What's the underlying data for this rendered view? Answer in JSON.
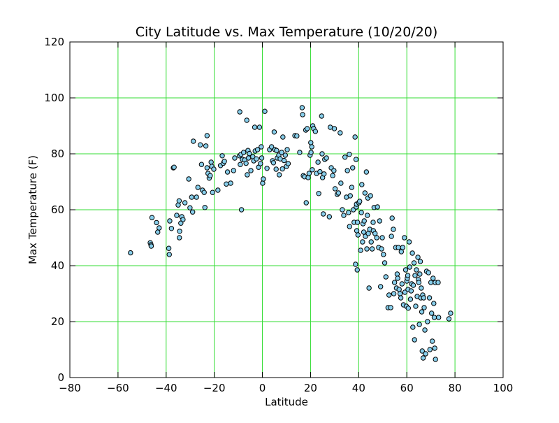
{
  "chart_data": {
    "type": "scatter",
    "title": "City Latitude vs. Max Temperature (10/20/20)",
    "xlabel": "Latitude",
    "ylabel": "Max Temperature (F)",
    "xlim": [
      -80,
      100
    ],
    "ylim": [
      0,
      120
    ],
    "xticks": [
      -80,
      -60,
      -40,
      -20,
      0,
      20,
      40,
      60,
      80,
      100
    ],
    "yticks": [
      0,
      20,
      40,
      60,
      80,
      100,
      120
    ],
    "grid": true,
    "legend": "none",
    "colors": {
      "marker_fill": "#87ceeb",
      "marker_edge": "#000000",
      "grid": "#33dd33",
      "axes": "#000000"
    },
    "series": [
      {
        "points": [
          [
            -54.8,
            44.6
          ],
          [
            -46.6,
            48.2
          ],
          [
            -46.3,
            47.5
          ],
          [
            -46.2,
            47
          ],
          [
            -45.9,
            57.2
          ],
          [
            -44,
            55.4
          ],
          [
            -43.5,
            52
          ],
          [
            -42.9,
            53.5
          ],
          [
            -38.9,
            46.2
          ],
          [
            -38.7,
            44
          ],
          [
            -38.5,
            56
          ],
          [
            -37.8,
            53.3
          ],
          [
            -37,
            75
          ],
          [
            -36.7,
            75.2
          ],
          [
            -35.6,
            58
          ],
          [
            -35,
            61.7
          ],
          [
            -34.6,
            63.2
          ],
          [
            -34.5,
            50
          ],
          [
            -34.4,
            52.3
          ],
          [
            -33.9,
            55.2
          ],
          [
            -33.5,
            57.5
          ],
          [
            -33,
            56.5
          ],
          [
            -32.2,
            62.5
          ],
          [
            -30.6,
            71
          ],
          [
            -30.1,
            60.7
          ],
          [
            -29.4,
            64.5
          ],
          [
            -29,
            59.2
          ],
          [
            -28.7,
            84.5
          ],
          [
            -27.4,
            64.5
          ],
          [
            -26.8,
            68
          ],
          [
            -25.8,
            83.2
          ],
          [
            -25.3,
            76.2
          ],
          [
            -24.9,
            67
          ],
          [
            -24.2,
            66.2
          ],
          [
            -23.9,
            60.8
          ],
          [
            -23.5,
            82.8
          ],
          [
            -23,
            86.5
          ],
          [
            -23,
            75
          ],
          [
            -22.6,
            73
          ],
          [
            -22.1,
            71.3
          ],
          [
            -21.7,
            72.2
          ],
          [
            -21.3,
            77
          ],
          [
            -21,
            75.5
          ],
          [
            -20.7,
            66.2
          ],
          [
            -20.2,
            74.5
          ],
          [
            -18.5,
            67
          ],
          [
            -17.4,
            75.8
          ],
          [
            -16.7,
            79.3
          ],
          [
            -16.3,
            76.6
          ],
          [
            -15.8,
            77.3
          ],
          [
            -15,
            69.2
          ],
          [
            -14.5,
            73.5
          ],
          [
            -13.2,
            69.5
          ],
          [
            -12,
            74
          ],
          [
            -11.5,
            78.5
          ],
          [
            -9.5,
            79.3
          ],
          [
            -9.4,
            95
          ],
          [
            -9.2,
            76.2
          ],
          [
            -8.9,
            79.8
          ],
          [
            -8.7,
            60
          ],
          [
            -8.3,
            78
          ],
          [
            -7.8,
            80.5
          ],
          [
            -7.4,
            77.8
          ],
          [
            -6.8,
            76.6
          ],
          [
            -6.5,
            92
          ],
          [
            -6.3,
            72.5
          ],
          [
            -6,
            81.2
          ],
          [
            -5.8,
            78.5
          ],
          [
            -5.4,
            80.1
          ],
          [
            -4.8,
            74
          ],
          [
            -4,
            79
          ],
          [
            -3.6,
            77.5
          ],
          [
            -3.2,
            89.5
          ],
          [
            -3,
            81
          ],
          [
            -2.5,
            78.2
          ],
          [
            -2,
            81.5
          ],
          [
            -1.6,
            75.2
          ],
          [
            -1.2,
            89.5
          ],
          [
            -0.8,
            76.5
          ],
          [
            -0.5,
            82.5
          ],
          [
            -0.3,
            78.5
          ],
          [
            0.1,
            69.5
          ],
          [
            0.4,
            71
          ],
          [
            1,
            95.2
          ],
          [
            1.9,
            74.8
          ],
          [
            3,
            81.5
          ],
          [
            3.8,
            82.5
          ],
          [
            4.2,
            77.5
          ],
          [
            4.6,
            76.8
          ],
          [
            4.9,
            87.8
          ],
          [
            5.2,
            81.5
          ],
          [
            5.7,
            74.5
          ],
          [
            5.9,
            81.2
          ],
          [
            6.2,
            78.5
          ],
          [
            6.8,
            79.5
          ],
          [
            7,
            72.5
          ],
          [
            7.4,
            78.2
          ],
          [
            8,
            80.5
          ],
          [
            8.3,
            74.6
          ],
          [
            8.5,
            86
          ],
          [
            9,
            77.6
          ],
          [
            9.5,
            79.5
          ],
          [
            10,
            75.5
          ],
          [
            10.3,
            81.5
          ],
          [
            10.7,
            76.5
          ],
          [
            13.5,
            86.5
          ],
          [
            14.3,
            86.4
          ],
          [
            15.5,
            80.5
          ],
          [
            16.5,
            96.5
          ],
          [
            16.7,
            94
          ],
          [
            17,
            72.2
          ],
          [
            17.5,
            71.8
          ],
          [
            18,
            88.5
          ],
          [
            18.2,
            62.5
          ],
          [
            18.6,
            89
          ],
          [
            19,
            71.5
          ],
          [
            19.4,
            73
          ],
          [
            19.8,
            79.5
          ],
          [
            20.1,
            84
          ],
          [
            20.2,
            80.5
          ],
          [
            20.5,
            82.5
          ],
          [
            20.7,
            74.3
          ],
          [
            20.9,
            90
          ],
          [
            21.3,
            89
          ],
          [
            22,
            88
          ],
          [
            22.5,
            73
          ],
          [
            23.1,
            77
          ],
          [
            23.4,
            65.8
          ],
          [
            23.9,
            73.6
          ],
          [
            24.6,
            93.5
          ],
          [
            24.8,
            80
          ],
          [
            25,
            71.5
          ],
          [
            25.3,
            58.5
          ],
          [
            25.6,
            72.8
          ],
          [
            25.9,
            78
          ],
          [
            26.6,
            78.5
          ],
          [
            27.8,
            57.5
          ],
          [
            28.2,
            89.5
          ],
          [
            28.6,
            75
          ],
          [
            29.2,
            72.2
          ],
          [
            29.7,
            74
          ],
          [
            29.9,
            89
          ],
          [
            30.2,
            67.5
          ],
          [
            31.1,
            65.5
          ],
          [
            31.6,
            66
          ],
          [
            32.3,
            87.5
          ],
          [
            32.6,
            69.5
          ],
          [
            33.2,
            60
          ],
          [
            33.8,
            58
          ],
          [
            34.3,
            78.8
          ],
          [
            34.9,
            64.5
          ],
          [
            35.3,
            74
          ],
          [
            35.8,
            59
          ],
          [
            36.1,
            79.8
          ],
          [
            36.2,
            54
          ],
          [
            36.5,
            65
          ],
          [
            37.1,
            68
          ],
          [
            37.5,
            75
          ],
          [
            37.8,
            60
          ],
          [
            38.1,
            55.5
          ],
          [
            38.5,
            86
          ],
          [
            38.7,
            40.5
          ],
          [
            38.9,
            78
          ],
          [
            39,
            61
          ],
          [
            39.1,
            62
          ],
          [
            39.2,
            52.5
          ],
          [
            39.4,
            38.5
          ],
          [
            39.5,
            55.5
          ],
          [
            39.7,
            51
          ],
          [
            40.1,
            62.5
          ],
          [
            40.4,
            63
          ],
          [
            40.8,
            45.5
          ],
          [
            41.1,
            59
          ],
          [
            41.3,
            69
          ],
          [
            41.6,
            48.5
          ],
          [
            41.8,
            55
          ],
          [
            42.1,
            52
          ],
          [
            42.3,
            56
          ],
          [
            42.6,
            66
          ],
          [
            42.8,
            50.5
          ],
          [
            43.2,
            73.5
          ],
          [
            43.4,
            46
          ],
          [
            43.6,
            58
          ],
          [
            43.8,
            64.2
          ],
          [
            44,
            51.5
          ],
          [
            44.3,
            32
          ],
          [
            44.6,
            53
          ],
          [
            44.9,
            65
          ],
          [
            45.2,
            48.5
          ],
          [
            45.6,
            46
          ],
          [
            46,
            55.5
          ],
          [
            46.1,
            52.5
          ],
          [
            46.4,
            60.8
          ],
          [
            46.8,
            51.5
          ],
          [
            47.5,
            50
          ],
          [
            47.8,
            61
          ],
          [
            48.3,
            46.5
          ],
          [
            48.7,
            56
          ],
          [
            49.1,
            32.5
          ],
          [
            49.5,
            46
          ],
          [
            49.8,
            50
          ],
          [
            50.3,
            44
          ],
          [
            50.8,
            41
          ],
          [
            51.3,
            36
          ],
          [
            52.2,
            25
          ],
          [
            52.6,
            29.5
          ],
          [
            53.3,
            25
          ],
          [
            53.6,
            50.5
          ],
          [
            53.9,
            57
          ],
          [
            54.4,
            53
          ],
          [
            54.6,
            30
          ],
          [
            54.9,
            34
          ],
          [
            55.4,
            46.5
          ],
          [
            55.7,
            32
          ],
          [
            56,
            37
          ],
          [
            56.2,
            35.5
          ],
          [
            56.5,
            46.5
          ],
          [
            56.8,
            31.5
          ],
          [
            57.2,
            30
          ],
          [
            57.5,
            28.5
          ],
          [
            57.7,
            45
          ],
          [
            58,
            33.5
          ],
          [
            58.3,
            46.5
          ],
          [
            58.6,
            26
          ],
          [
            59,
            50
          ],
          [
            59.2,
            30.5
          ],
          [
            59.5,
            38.5
          ],
          [
            59.8,
            25.5
          ],
          [
            60,
            34.5
          ],
          [
            60.2,
            35.5
          ],
          [
            60.4,
            36.5
          ],
          [
            60.5,
            31.5
          ],
          [
            60.6,
            24.8
          ],
          [
            61,
            48.5
          ],
          [
            61.2,
            39.5
          ],
          [
            61.5,
            28
          ],
          [
            61.8,
            31
          ],
          [
            62,
            33.5
          ],
          [
            62.3,
            44.5
          ],
          [
            62.5,
            18
          ],
          [
            62.7,
            33
          ],
          [
            63,
            41
          ],
          [
            63.2,
            13.5
          ],
          [
            63.4,
            36.5
          ],
          [
            63.7,
            25.5
          ],
          [
            64,
            38.5
          ],
          [
            64.3,
            29
          ],
          [
            64.6,
            43
          ],
          [
            64.8,
            35
          ],
          [
            65,
            34
          ],
          [
            65.2,
            19
          ],
          [
            65.4,
            37
          ],
          [
            65.6,
            41.5
          ],
          [
            65.8,
            28.5
          ],
          [
            66,
            32
          ],
          [
            66.2,
            23.5
          ],
          [
            66.4,
            9.5
          ],
          [
            66.6,
            29.5
          ],
          [
            66.8,
            7
          ],
          [
            67,
            28.5
          ],
          [
            67.2,
            25
          ],
          [
            67.5,
            17
          ],
          [
            67.8,
            8.5
          ],
          [
            68.2,
            38
          ],
          [
            68.6,
            20
          ],
          [
            69,
            37.5
          ],
          [
            69.4,
            28.5
          ],
          [
            69.6,
            10
          ],
          [
            70,
            34
          ],
          [
            70.3,
            23
          ],
          [
            70.6,
            13
          ],
          [
            70.9,
            35.5
          ],
          [
            71.2,
            26.5
          ],
          [
            71.4,
            21.5
          ],
          [
            71.6,
            10.5
          ],
          [
            71.8,
            34
          ],
          [
            71.9,
            6.5
          ],
          [
            73,
            34
          ],
          [
            73.2,
            21.5
          ],
          [
            77.5,
            21
          ],
          [
            78.2,
            23
          ]
        ]
      }
    ]
  }
}
